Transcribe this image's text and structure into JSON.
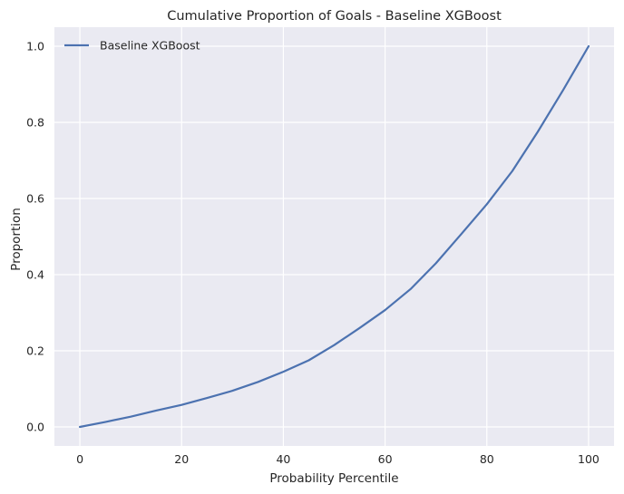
{
  "chart_data": {
    "type": "line",
    "title": "Cumulative Proportion of Goals - Baseline XGBoost",
    "xlabel": "Probability Percentile",
    "ylabel": "Proportion",
    "xlim": [
      -5,
      105
    ],
    "ylim": [
      -0.05,
      1.05
    ],
    "xticks": [
      0,
      20,
      40,
      60,
      80,
      100
    ],
    "xtick_labels": [
      "0",
      "20",
      "40",
      "60",
      "80",
      "100"
    ],
    "yticks": [
      0.0,
      0.2,
      0.4,
      0.6,
      0.8,
      1.0
    ],
    "ytick_labels": [
      "0.0",
      "0.2",
      "0.4",
      "0.6",
      "0.8",
      "1.0"
    ],
    "grid": true,
    "legend": {
      "position": "top-left",
      "entries": [
        "Baseline XGBoost"
      ]
    },
    "colors": {
      "background": "#eaeaf2",
      "grid": "#ffffff",
      "series": "#4c72b0"
    },
    "series": [
      {
        "name": "Baseline XGBoost",
        "x": [
          0,
          5,
          10,
          15,
          20,
          25,
          30,
          35,
          40,
          45,
          50,
          55,
          60,
          65,
          70,
          75,
          80,
          85,
          90,
          95,
          100
        ],
        "y": [
          0.0,
          0.013,
          0.027,
          0.043,
          0.058,
          0.076,
          0.095,
          0.118,
          0.145,
          0.175,
          0.215,
          0.26,
          0.307,
          0.362,
          0.43,
          0.507,
          0.585,
          0.672,
          0.775,
          0.885,
          1.0
        ]
      }
    ]
  }
}
